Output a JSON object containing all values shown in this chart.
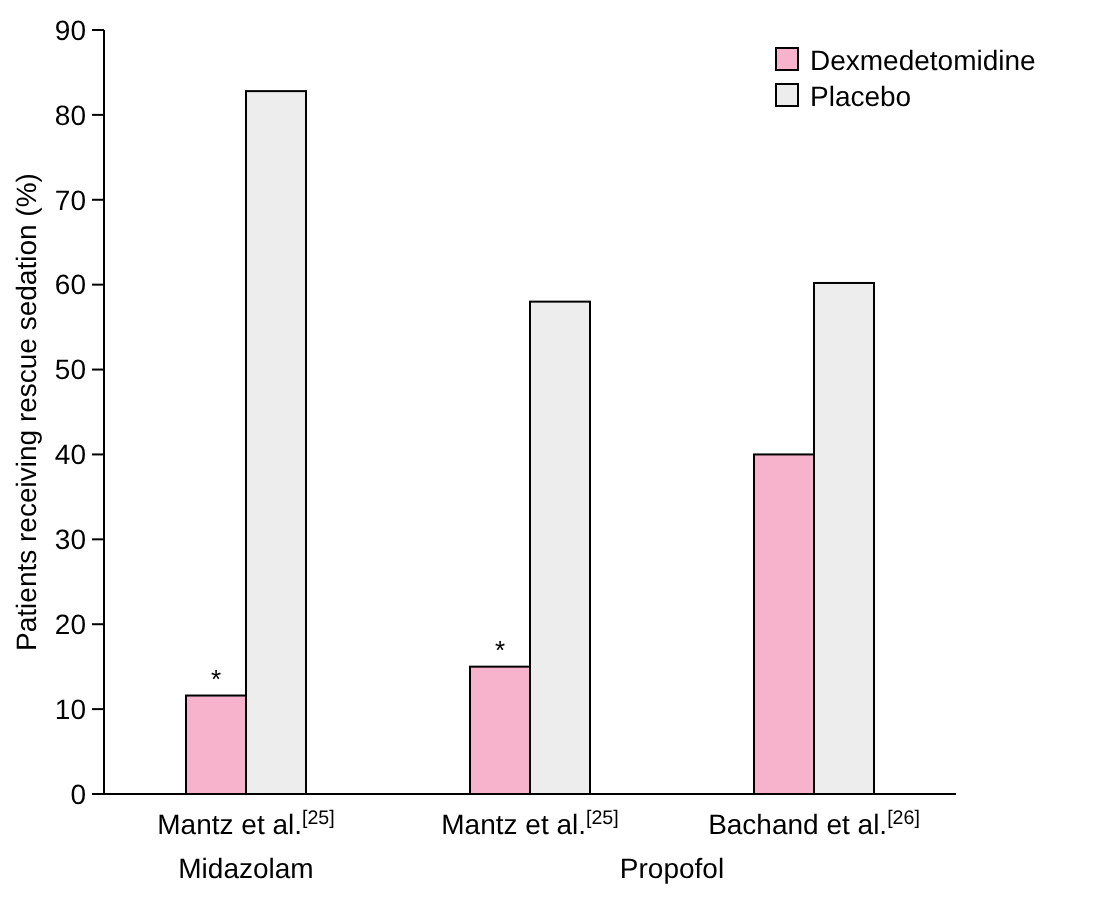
{
  "chart_data": {
    "type": "bar",
    "ylabel": "Patients receiving rescue sedation (%)",
    "categories": [
      "Mantz et al.$^{[25]}$",
      "Mantz et al.$^{[25]}$",
      "Bachand et al.$^{[26]}$"
    ],
    "series": [
      {
        "name": "Dexmedetomidine",
        "color": "#f6b3cb",
        "values": [
          11.6,
          15,
          40
        ],
        "value_labels": [
          "*",
          "*",
          null
        ]
      },
      {
        "name": "Placebo",
        "color": "#ededed",
        "values": [
          82.8,
          58,
          60.2
        ]
      }
    ],
    "ylim": [
      0,
      90
    ],
    "yticks": [
      0,
      10,
      20,
      30,
      40,
      50,
      60,
      70,
      80,
      90
    ],
    "grid": false,
    "legend": "top right",
    "annotations": [
      "Midazolam",
      "Propofol"
    ]
  }
}
